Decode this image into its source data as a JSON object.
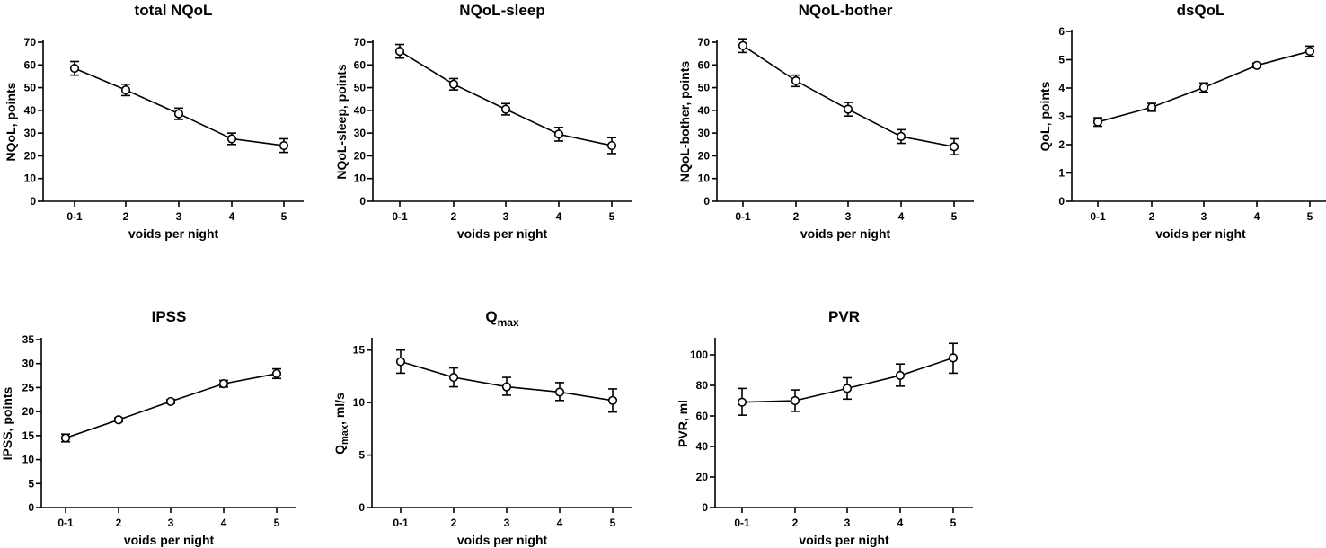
{
  "chart_data": [
    {
      "id": "p1",
      "type": "line",
      "title": "total NQoL",
      "xlabel": "voids per night",
      "ylabel": "NQoL, points",
      "categories": [
        "0-1",
        "2",
        "3",
        "4",
        "5"
      ],
      "ylim": [
        0,
        70
      ],
      "yticks": [
        0,
        10,
        20,
        30,
        40,
        50,
        60,
        70
      ],
      "values": [
        58.5,
        49,
        38.5,
        27.5,
        24.5
      ],
      "err_low": [
        55.5,
        46.5,
        36,
        25,
        21.5
      ],
      "err_high": [
        61.5,
        51.5,
        41,
        30,
        27.5
      ]
    },
    {
      "id": "p2",
      "type": "line",
      "title": "NQoL-sleep",
      "xlabel": "voids per night",
      "ylabel": "NQoL-sleep, points",
      "categories": [
        "0-1",
        "2",
        "3",
        "4",
        "5"
      ],
      "ylim": [
        0,
        70
      ],
      "yticks": [
        0,
        10,
        20,
        30,
        40,
        50,
        60,
        70
      ],
      "values": [
        66,
        51.5,
        40.5,
        29.5,
        24.5
      ],
      "err_low": [
        63,
        49,
        38,
        26.5,
        21
      ],
      "err_high": [
        69,
        54,
        43,
        32.5,
        28
      ]
    },
    {
      "id": "p3",
      "type": "line",
      "title": "NQoL-bother",
      "xlabel": "voids per night",
      "ylabel": "NQoL-bother, points",
      "categories": [
        "0-1",
        "2",
        "3",
        "4",
        "5"
      ],
      "ylim": [
        0,
        70
      ],
      "yticks": [
        0,
        10,
        20,
        30,
        40,
        50,
        60,
        70
      ],
      "values": [
        68.5,
        53,
        40.5,
        28.5,
        24
      ],
      "err_low": [
        65.5,
        50.5,
        37.5,
        25.5,
        20.5
      ],
      "err_high": [
        71.5,
        55.5,
        43.5,
        31.5,
        27.5
      ]
    },
    {
      "id": "p4",
      "type": "line",
      "title": "dsQoL",
      "xlabel": "voids per night",
      "ylabel": "QoL, points",
      "categories": [
        "0-1",
        "2",
        "3",
        "4",
        "5"
      ],
      "ylim": [
        0,
        6
      ],
      "yticks": [
        0,
        1,
        2,
        3,
        4,
        5,
        6
      ],
      "values": [
        2.8,
        3.32,
        4.02,
        4.8,
        5.3
      ],
      "err_low": [
        2.65,
        3.18,
        3.85,
        4.72,
        5.12
      ],
      "err_high": [
        2.95,
        3.46,
        4.18,
        4.88,
        5.48
      ]
    },
    {
      "id": "p5",
      "type": "line",
      "title": "IPSS",
      "xlabel": "voids per night",
      "ylabel": "IPSS, points",
      "categories": [
        "0-1",
        "2",
        "3",
        "4",
        "5"
      ],
      "ylim": [
        0,
        35
      ],
      "yticks": [
        0,
        5,
        10,
        15,
        20,
        25,
        30,
        35
      ],
      "values": [
        14.5,
        18.3,
        22.1,
        25.8,
        27.9
      ],
      "err_low": [
        13.7,
        17.9,
        21.7,
        25.1,
        26.9
      ],
      "err_high": [
        15.3,
        18.7,
        22.5,
        26.5,
        28.9
      ]
    },
    {
      "id": "p6",
      "type": "line",
      "title": "Q",
      "title_sub": "max",
      "xlabel": "voids per night",
      "ylabel": "Q",
      "ylabel_sub": "max",
      "ylabel_rest": ", ml/s",
      "categories": [
        "0-1",
        "2",
        "3",
        "4",
        "5"
      ],
      "ylim": [
        0,
        16
      ],
      "yticks": [
        0,
        5,
        10,
        15
      ],
      "values": [
        13.9,
        12.4,
        11.5,
        11.0,
        10.2
      ],
      "err_low": [
        12.8,
        11.5,
        10.7,
        10.2,
        9.1
      ],
      "err_high": [
        15.0,
        13.3,
        12.4,
        11.9,
        11.3
      ]
    },
    {
      "id": "p7",
      "type": "line",
      "title": "PVR",
      "xlabel": "voids per night",
      "ylabel": "PVR, ml",
      "categories": [
        "0-1",
        "2",
        "3",
        "4",
        "5"
      ],
      "ylim": [
        0,
        110
      ],
      "yticks": [
        0,
        20,
        40,
        60,
        80,
        100
      ],
      "values": [
        69,
        70,
        78,
        86.5,
        98
      ],
      "err_low": [
        60.5,
        63,
        71,
        79.5,
        88
      ],
      "err_high": [
        78,
        77,
        85,
        94,
        107.5
      ]
    }
  ]
}
